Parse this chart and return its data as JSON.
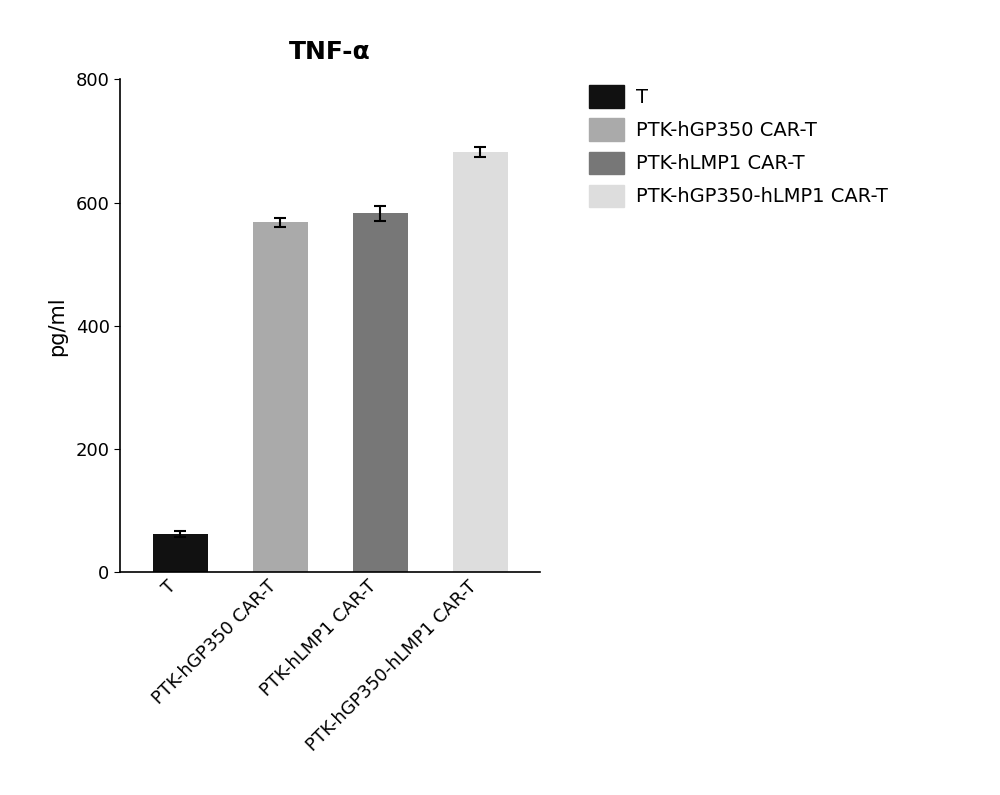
{
  "title": "TNF-α",
  "ylabel": "pg/ml",
  "categories": [
    "T",
    "PTK-hGP350 CAR-T",
    "PTK-hLMP1 CAR-T",
    "PTK-hGP350-hLMP1 CAR-T"
  ],
  "values": [
    62,
    568,
    583,
    682
  ],
  "errors": [
    5,
    7,
    12,
    8
  ],
  "bar_colors": [
    "#111111",
    "#aaaaaa",
    "#777777",
    "#dddddd"
  ],
  "ylim": [
    0,
    800
  ],
  "yticks": [
    0,
    200,
    400,
    600,
    800
  ],
  "legend_labels": [
    "T",
    "PTK-hGP350 CAR-T",
    "PTK-hLMP1 CAR-T",
    "PTK-hGP350-hLMP1 CAR-T"
  ],
  "legend_colors": [
    "#111111",
    "#aaaaaa",
    "#777777",
    "#dddddd"
  ],
  "background_color": "#ffffff",
  "bar_width": 0.55,
  "title_fontsize": 18,
  "axis_fontsize": 15,
  "tick_fontsize": 13,
  "legend_fontsize": 14
}
